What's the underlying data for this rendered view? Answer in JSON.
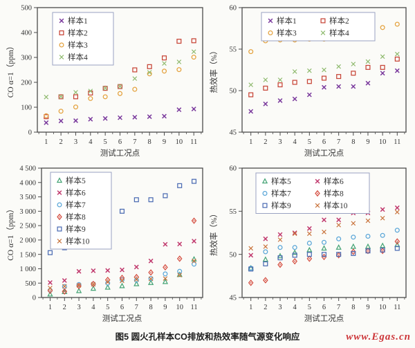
{
  "figure": {
    "caption": "图5 圆火孔样本CO排放和热效率随气源变化响应",
    "watermark": "www.Egas.cn"
  },
  "chart_data": [
    {
      "id": "co-emission-samples-1-4",
      "type": "scatter",
      "title": "",
      "xlabel": "测试工况点",
      "ylabel": "CO α=1（ppm）",
      "x": [
        1,
        2,
        3,
        4,
        5,
        6,
        7,
        8,
        9,
        10,
        11
      ],
      "xlim": [
        0.4,
        11.6
      ],
      "ylim": [
        0,
        500
      ],
      "yticks": [
        0,
        100,
        200,
        300,
        400,
        500
      ],
      "thousands_sep": "",
      "grid": false,
      "legend": {
        "cols": 1,
        "offset": [
          22,
          7
        ],
        "position": "top-left"
      },
      "series": [
        {
          "name": "样本1",
          "marker": "xdot",
          "color": "#7a3a9d",
          "values": [
            38,
            45,
            46,
            52,
            55,
            58,
            60,
            62,
            64,
            90,
            93
          ]
        },
        {
          "name": "样本2",
          "marker": "square-open",
          "color": "#c74436",
          "values": [
            62,
            142,
            142,
            157,
            176,
            183,
            250,
            263,
            298,
            365,
            367
          ]
        },
        {
          "name": "样本3",
          "marker": "circle-open",
          "color": "#e4a23e",
          "values": [
            66,
            84,
            101,
            135,
            142,
            155,
            172,
            234,
            245,
            251,
            301
          ]
        },
        {
          "name": "样本4",
          "marker": "x",
          "color": "#8fba6e",
          "values": [
            141,
            143,
            160,
            165,
            177,
            184,
            215,
            240,
            276,
            282,
            323
          ]
        }
      ]
    },
    {
      "id": "thermal-efficiency-samples-1-4",
      "type": "scatter",
      "title": "",
      "xlabel": "测试工况点",
      "ylabel": "热效率（%）",
      "x": [
        1,
        2,
        3,
        4,
        5,
        6,
        7,
        8,
        9,
        10,
        11
      ],
      "xlim": [
        0.4,
        11.6
      ],
      "ylim": [
        45,
        60
      ],
      "yticks": [
        45,
        50,
        55,
        60
      ],
      "thousands_sep": "",
      "grid": false,
      "legend": {
        "cols": 2,
        "offset": [
          28,
          7
        ],
        "position": "top-left"
      },
      "series": [
        {
          "name": "样本1",
          "marker": "xdot",
          "color": "#7a3a9d",
          "values": [
            47.5,
            48.4,
            48.8,
            49.0,
            49.5,
            50.4,
            50.5,
            50.5,
            50.9,
            52.1,
            52.4
          ]
        },
        {
          "name": "样本2",
          "marker": "square-open",
          "color": "#c74436",
          "values": [
            49.5,
            50.3,
            50.7,
            51.0,
            51.1,
            51.5,
            51.7,
            52.1,
            52.8,
            52.8,
            53.8
          ]
        },
        {
          "name": "样本3",
          "marker": "circle-open",
          "color": "#e4a23e",
          "values": [
            54.7,
            56.0,
            56.1,
            56.1,
            56.2,
            56.2,
            56.7,
            57.1,
            57.4,
            57.6,
            58.0
          ]
        },
        {
          "name": "样本4",
          "marker": "x",
          "color": "#8fba6e",
          "values": [
            50.7,
            51.3,
            51.3,
            52.3,
            52.4,
            52.5,
            52.9,
            53.2,
            53.5,
            54.1,
            54.4
          ]
        }
      ]
    },
    {
      "id": "co-emission-samples-5-10",
      "type": "scatter",
      "title": "",
      "xlabel": "测试工况点",
      "ylabel": "CO α=1（ppm）",
      "x": [
        1,
        2,
        3,
        4,
        5,
        6,
        7,
        8,
        9,
        10,
        11
      ],
      "xlim": [
        0.4,
        11.6
      ],
      "ylim": [
        0,
        4500
      ],
      "yticks": [
        0,
        500,
        1000,
        1500,
        2000,
        2500,
        3000,
        3500,
        4000,
        4500
      ],
      "thousands_sep": " ",
      "grid": false,
      "legend": {
        "cols": 1,
        "offset": [
          13,
          6
        ],
        "position": "top-left"
      },
      "series": [
        {
          "name": "样本5",
          "marker": "triangle-open",
          "color": "#46a476",
          "values": [
            110,
            200,
            230,
            310,
            350,
            400,
            470,
            510,
            545,
            790,
            1330
          ]
        },
        {
          "name": "样本6",
          "marker": "xdot",
          "color": "#c13a6e",
          "values": [
            520,
            590,
            910,
            930,
            940,
            960,
            1060,
            1270,
            1850,
            1860,
            1960
          ]
        },
        {
          "name": "样本7",
          "marker": "circle-open",
          "color": "#5aa6d8",
          "values": [
            250,
            380,
            450,
            470,
            500,
            620,
            600,
            660,
            820,
            910,
            1160
          ]
        },
        {
          "name": "样本8",
          "marker": "diamond-open",
          "color": "#d54f42",
          "values": [
            240,
            210,
            400,
            470,
            610,
            680,
            710,
            870,
            1050,
            1350,
            2670
          ]
        },
        {
          "name": "样本9",
          "marker": "square-open",
          "color": "#4c6cb3",
          "values": [
            1560,
            1730,
            1790,
            2210,
            2940,
            3000,
            3400,
            3400,
            3540,
            3890,
            4040
          ]
        },
        {
          "name": "样本10",
          "marker": "x",
          "color": "#c9743d",
          "values": [
            330,
            390,
            420,
            460,
            540,
            580,
            630,
            650,
            660,
            780,
            1270
          ]
        }
      ]
    },
    {
      "id": "thermal-efficiency-samples-5-10",
      "type": "scatter",
      "title": "",
      "xlabel": "测试工况点",
      "ylabel": "热效率（%）",
      "x": [
        1,
        2,
        3,
        4,
        5,
        6,
        7,
        8,
        9,
        10,
        11
      ],
      "xlim": [
        0.4,
        11.6
      ],
      "ylim": [
        45,
        60
      ],
      "yticks": [
        45,
        50,
        55,
        60
      ],
      "thousands_sep": "",
      "grid": false,
      "legend": {
        "cols": 2,
        "offset": [
          20,
          7
        ],
        "position": "top-left"
      },
      "series": [
        {
          "name": "样本5",
          "marker": "triangle-open",
          "color": "#46a476",
          "values": [
            48.4,
            49.4,
            49.8,
            50.2,
            50.5,
            50.7,
            50.8,
            50.9,
            50.9,
            51.0,
            51.1
          ]
        },
        {
          "name": "样本6",
          "marker": "xdot",
          "color": "#c13a6e",
          "values": [
            49.9,
            51.8,
            52.3,
            52.5,
            53.0,
            54.0,
            54.0,
            54.8,
            54.8,
            55.2,
            55.4
          ]
        },
        {
          "name": "样本7",
          "marker": "circle-open",
          "color": "#5aa6d8",
          "values": [
            48.4,
            50.3,
            50.8,
            50.8,
            51.3,
            51.4,
            51.8,
            52.0,
            52.1,
            52.2,
            52.8
          ]
        },
        {
          "name": "样本8",
          "marker": "diamond-open",
          "color": "#d54f42",
          "values": [
            46.7,
            47.0,
            48.8,
            49.2,
            49.5,
            49.7,
            49.9,
            50.3,
            50.4,
            50.4,
            51.5
          ]
        },
        {
          "name": "样本9",
          "marker": "square-open",
          "color": "#4c6cb3",
          "values": [
            48.3,
            48.9,
            49.6,
            49.9,
            50.0,
            50.0,
            50.0,
            50.1,
            50.4,
            50.5,
            50.7
          ]
        },
        {
          "name": "样本10",
          "marker": "x",
          "color": "#c9743d",
          "values": [
            50.7,
            50.9,
            51.7,
            52.4,
            52.4,
            52.6,
            53.4,
            53.6,
            53.9,
            54.2,
            54.9
          ]
        }
      ]
    }
  ],
  "style": {
    "axis_color": "#4a4a4a",
    "tick_label_color": "#333333",
    "legend_border_color": "#9aa2c2",
    "legend_fill": "#ffffff"
  }
}
